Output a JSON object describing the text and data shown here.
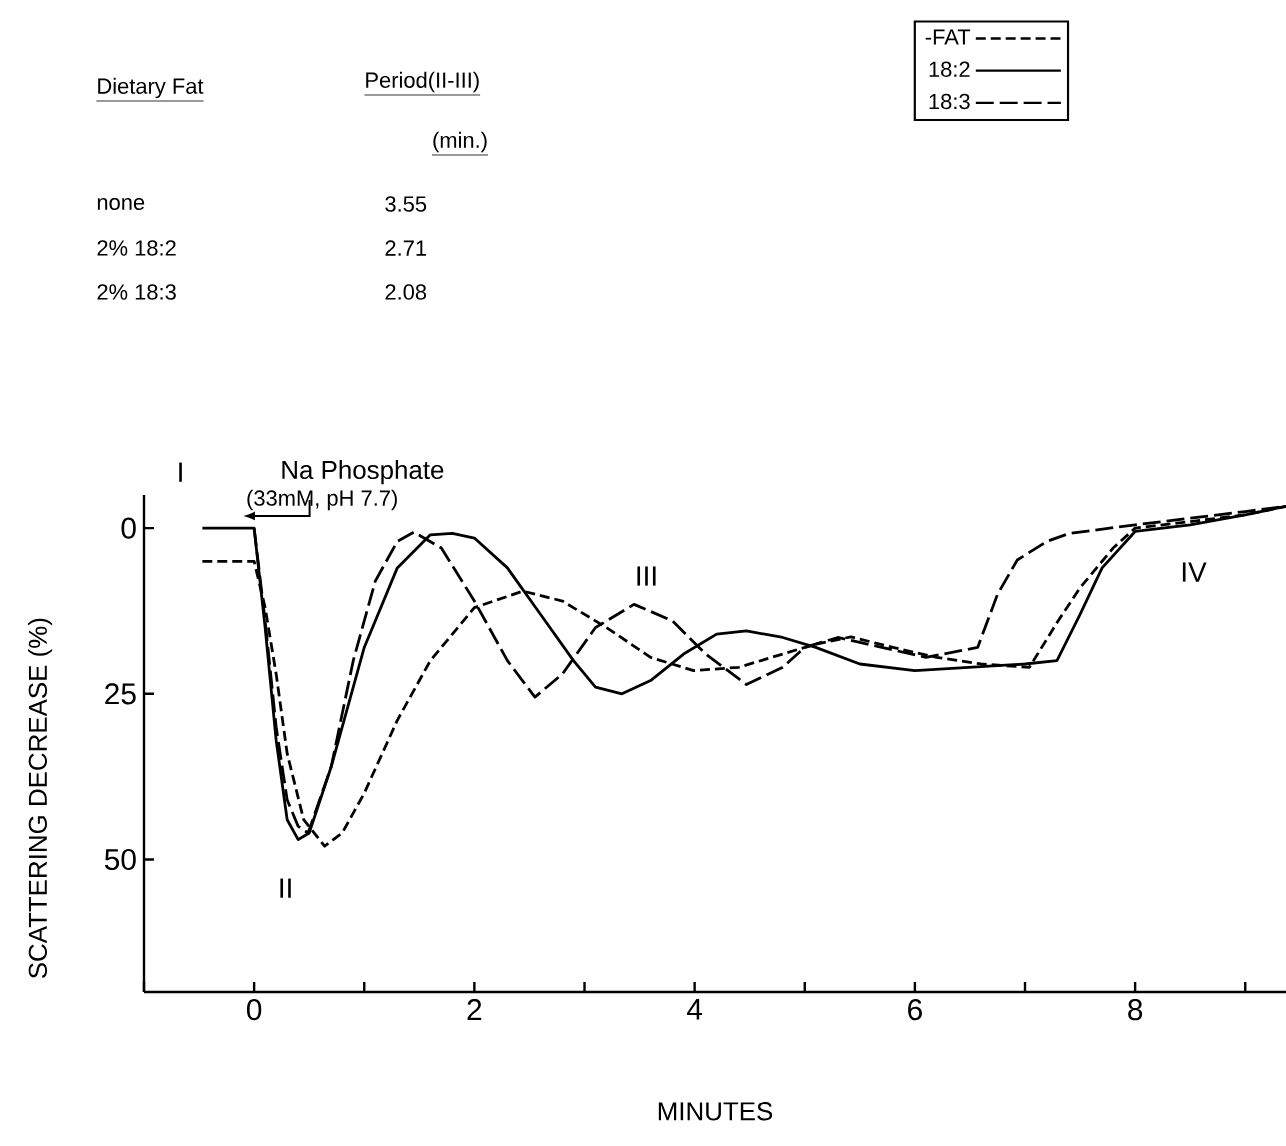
{
  "chart_data": {
    "type": "line",
    "xlabel": "MINUTES",
    "ylabel": "SCATTERING DECREASE (%)",
    "xlim": [
      -1,
      9.37
    ],
    "ylim": [
      70,
      -5
    ],
    "xticks": [
      {
        "value": -1,
        "label": null
      },
      0,
      {
        "value": 1,
        "label": null
      },
      2,
      {
        "value": 3,
        "label": null
      },
      4,
      {
        "value": 5,
        "label": null
      },
      6,
      {
        "value": 7,
        "label": null
      },
      8,
      {
        "value": 9,
        "label": null
      }
    ],
    "yticks": [
      0,
      25,
      50
    ],
    "legend": "top right",
    "grid": false,
    "marker": "none",
    "series": [
      {
        "name": "-FAT",
        "color": "#000000",
        "line_style": "dashed",
        "x": [
          -0.47,
          0,
          0.1,
          0.2,
          0.3,
          0.45,
          0.64,
          0.8,
          1.0,
          1.3,
          1.6,
          2.0,
          2.44,
          2.8,
          3.2,
          3.6,
          3.99,
          4.4,
          4.8,
          5.1,
          5.42,
          5.8,
          6.2,
          6.6,
          7.04,
          7.3,
          7.5,
          7.8,
          8.0,
          8.5,
          9.0,
          9.37
        ],
        "values": [
          5,
          5,
          12,
          22,
          34,
          44,
          48,
          46,
          40,
          29,
          20,
          12,
          9.5,
          11,
          15,
          19.5,
          21.5,
          21,
          19,
          17.5,
          16.4,
          18,
          19.5,
          20.5,
          21,
          14,
          9,
          3,
          0,
          -1,
          -2,
          -3.3
        ]
      },
      {
        "name": "18:2",
        "color": "#000000",
        "line_style": "solid",
        "x": [
          -0.47,
          0,
          0.1,
          0.2,
          0.3,
          0.4,
          0.5,
          0.7,
          1.0,
          1.3,
          1.6,
          1.8,
          2.0,
          2.3,
          2.6,
          2.9,
          3.1,
          3.34,
          3.6,
          3.9,
          4.2,
          4.47,
          4.8,
          5.1,
          5.5,
          6.0,
          6.5,
          7.0,
          7.29,
          7.5,
          7.7,
          8.0,
          8.5,
          9.0,
          9.37
        ],
        "values": [
          0,
          0,
          15,
          32,
          44,
          47,
          46,
          36,
          18,
          6,
          1,
          0.8,
          1.5,
          6,
          13,
          20,
          24,
          25,
          23,
          19,
          16,
          15.5,
          16.5,
          18,
          20.5,
          21.5,
          21,
          20.5,
          20,
          13,
          6,
          0.5,
          -0.5,
          -2,
          -3.3
        ]
      },
      {
        "name": "18:3",
        "color": "#000000",
        "line_style": "dashed",
        "x": [
          0,
          0.1,
          0.2,
          0.3,
          0.4,
          0.49,
          0.7,
          0.9,
          1.1,
          1.3,
          1.45,
          1.7,
          2.0,
          2.3,
          2.55,
          2.8,
          3.1,
          3.45,
          3.8,
          4.1,
          4.47,
          4.8,
          5.0,
          5.3,
          5.7,
          6.1,
          6.57,
          6.75,
          6.93,
          7.2,
          7.4,
          8.0,
          8.5,
          9.0,
          9.37
        ],
        "values": [
          0,
          14,
          30,
          41,
          45,
          46,
          36,
          20,
          8,
          2,
          0.6,
          3,
          11,
          20,
          25.5,
          22,
          15,
          11.5,
          14,
          19,
          23.6,
          21,
          18,
          16.5,
          18,
          19.5,
          18,
          10,
          4.8,
          2,
          0.8,
          -0.5,
          -1.5,
          -2.5,
          -3.3
        ]
      }
    ],
    "annotations": [
      "Dietary Fat",
      "Period(II-III)",
      "(min.)",
      "none",
      "3.55",
      "2% 18:2",
      "2.71",
      "2% 18:3",
      "2.08",
      "Na Phosphate",
      "(33mM, pH 7.7)",
      "I",
      "II",
      "III",
      "IV"
    ]
  }
}
